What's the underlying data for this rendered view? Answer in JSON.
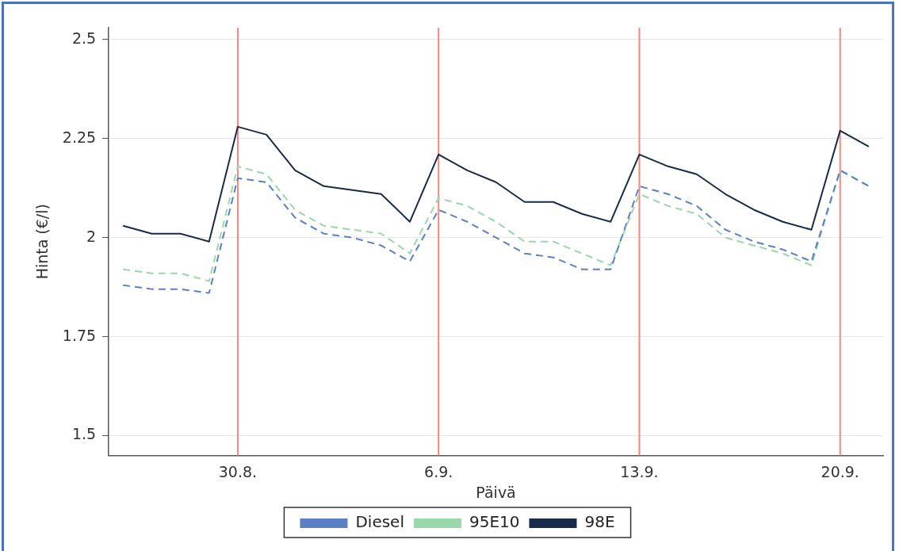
{
  "chart_data": {
    "type": "line",
    "xlabel": "Päivä",
    "ylabel": "Hinta (€/l)",
    "x": [
      "--08-26",
      "--08-27",
      "--08-28",
      "--08-29",
      "--08-30",
      "--08-31",
      "--09-01",
      "--09-02",
      "--09-03",
      "--09-04",
      "--09-05",
      "--09-06",
      "--09-07",
      "--09-08",
      "--09-09",
      "--09-10",
      "--09-11",
      "--09-12",
      "--09-13",
      "--09-14",
      "--09-15",
      "--09-16",
      "--09-17",
      "--09-18",
      "--09-19",
      "--09-20",
      "--09-21"
    ],
    "series": [
      {
        "name": "Diesel",
        "color": "#5b7fc7",
        "line_style": "dashed",
        "values": [
          1.88,
          1.87,
          1.87,
          1.86,
          2.15,
          2.14,
          2.05,
          2.01,
          2.0,
          1.98,
          1.94,
          2.07,
          2.04,
          2.0,
          1.96,
          1.95,
          1.92,
          1.92,
          2.13,
          2.11,
          2.08,
          2.02,
          1.99,
          1.97,
          1.94,
          2.17,
          2.13
        ]
      },
      {
        "name": "95E10",
        "color": "#9ad7ac",
        "line_style": "dashed",
        "values": [
          1.92,
          1.91,
          1.91,
          1.89,
          2.18,
          2.16,
          2.07,
          2.03,
          2.02,
          2.01,
          1.96,
          2.1,
          2.08,
          2.04,
          1.99,
          1.99,
          1.96,
          1.93,
          2.11,
          2.08,
          2.06,
          2.0,
          1.98,
          1.96,
          1.93,
          2.17,
          2.13
        ]
      },
      {
        "name": "98E",
        "color": "#1a2a4a",
        "line_style": "solid",
        "values": [
          2.03,
          2.01,
          2.01,
          1.99,
          2.28,
          2.26,
          2.17,
          2.13,
          2.12,
          2.11,
          2.04,
          2.21,
          2.17,
          2.14,
          2.09,
          2.09,
          2.06,
          2.04,
          2.21,
          2.18,
          2.16,
          2.11,
          2.07,
          2.04,
          2.02,
          2.27,
          2.23
        ]
      }
    ],
    "xlim": [
      "--08-25T12:00",
      "--09-21T12:00"
    ],
    "xticks": [
      {
        "value": "--08-30",
        "label": "30.8."
      },
      {
        "value": "--09-06",
        "label": "6.9."
      },
      {
        "value": "--09-13",
        "label": "13.9."
      },
      {
        "value": "--09-20",
        "label": "20.9."
      }
    ],
    "ylim": [
      1.45,
      2.53
    ],
    "yticks": [
      1.5,
      1.75,
      2,
      2.25,
      2.5
    ],
    "ref_lines": [
      {
        "axis": "x",
        "value": "--08-30",
        "color": "#f4877e"
      },
      {
        "axis": "x",
        "value": "--09-06",
        "color": "#f4877e"
      },
      {
        "axis": "x",
        "value": "--09-13",
        "color": "#f4877e"
      },
      {
        "axis": "x",
        "value": "--09-20",
        "color": "#f4877e"
      }
    ],
    "grid": "y",
    "legend": "bottom",
    "marker": "none"
  }
}
